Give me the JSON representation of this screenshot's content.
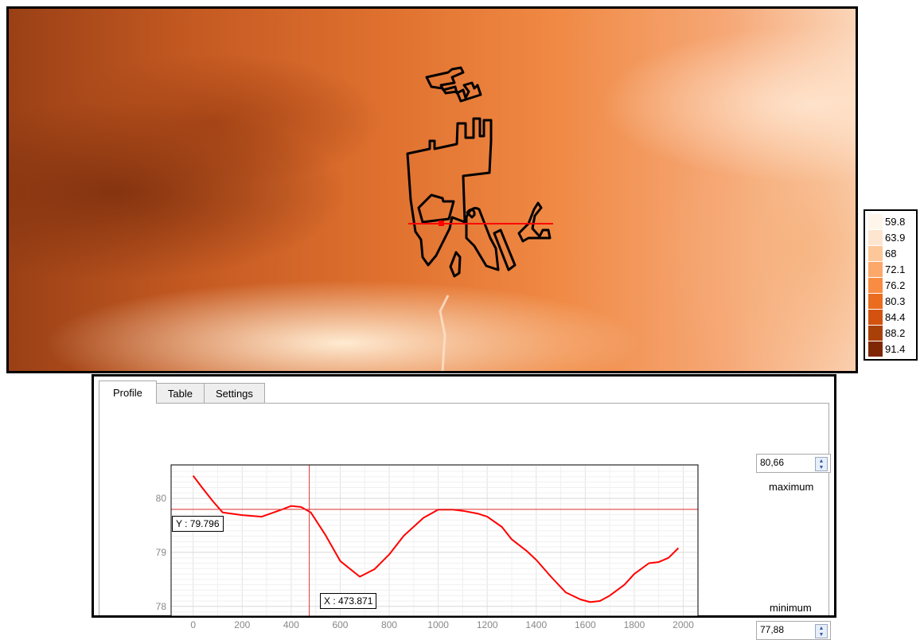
{
  "legend": {
    "items": [
      {
        "label": "59.8",
        "color": "#fff5eb"
      },
      {
        "label": "63.9",
        "color": "#fde5d0"
      },
      {
        "label": "68",
        "color": "#fdc79a"
      },
      {
        "label": "72.1",
        "color": "#fca86a"
      },
      {
        "label": "76.2",
        "color": "#f98c43"
      },
      {
        "label": "80.3",
        "color": "#ea6d1f"
      },
      {
        "label": "84.4",
        "color": "#d35210"
      },
      {
        "label": "88.2",
        "color": "#a94007"
      },
      {
        "label": "91.4",
        "color": "#7f2704"
      }
    ]
  },
  "profile_panel": {
    "tabs": [
      {
        "label": "Profile",
        "active": true
      },
      {
        "label": "Table",
        "active": false
      },
      {
        "label": "Settings",
        "active": false
      }
    ],
    "y_readout": "Y : 79.796",
    "x_readout": "X : 473.871",
    "maximum_value": "80,66",
    "maximum_label": "maximum",
    "minimum_value": "77,88",
    "minimum_label": "minimum"
  },
  "colors": {
    "profile_line": "#ff0000",
    "cursor_line": "#e03030",
    "outline": "#000000"
  },
  "chart_data": {
    "type": "line",
    "x_ticks": [
      0,
      200,
      400,
      600,
      800,
      1000,
      1200,
      1400,
      1600,
      1800,
      2000
    ],
    "y_ticks": [
      78,
      79,
      80
    ],
    "xlim": [
      -90,
      2060
    ],
    "ylim": [
      77.82,
      80.62
    ],
    "grid": true,
    "cursor": {
      "x": 473.871,
      "y": 79.796
    },
    "series": [
      {
        "x": [
          0,
          40,
          80,
          120,
          200,
          280,
          360,
          400,
          440,
          480,
          540,
          600,
          680,
          740,
          800,
          860,
          940,
          1000,
          1060,
          1100,
          1160,
          1200,
          1260,
          1300,
          1360,
          1400,
          1460,
          1520,
          1580,
          1620,
          1660,
          1700,
          1760,
          1800,
          1860,
          1900,
          1940,
          1980
        ],
        "y": [
          80.42,
          80.18,
          79.95,
          79.74,
          79.69,
          79.66,
          79.79,
          79.86,
          79.84,
          79.74,
          79.32,
          78.84,
          78.55,
          78.69,
          78.96,
          79.31,
          79.64,
          79.79,
          79.79,
          79.77,
          79.72,
          79.66,
          79.47,
          79.24,
          79.03,
          78.86,
          78.55,
          78.26,
          78.13,
          78.08,
          78.1,
          78.2,
          78.4,
          78.6,
          78.8,
          78.82,
          78.9,
          79.08
        ]
      }
    ]
  }
}
